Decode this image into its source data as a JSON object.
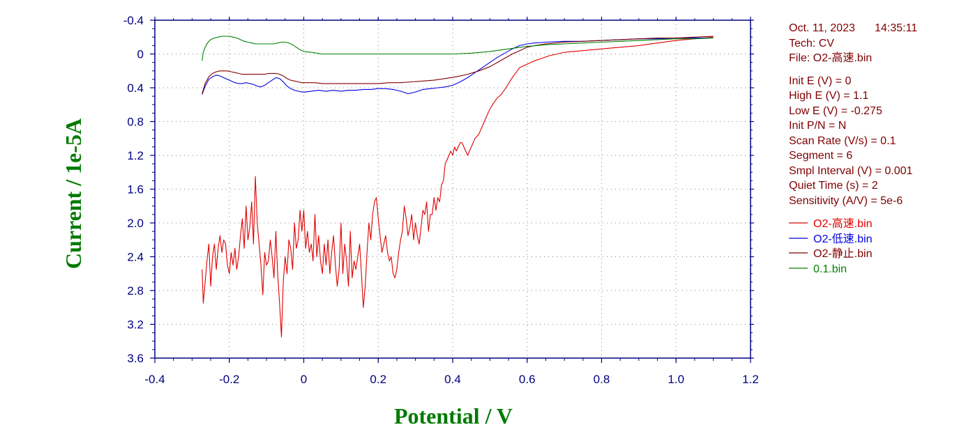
{
  "info": {
    "date": "Oct. 11, 2023",
    "time": "14:35:11",
    "tech": "Tech: CV",
    "file": "File: O2-高速.bin",
    "params": [
      "Init E (V) = 0",
      "High E (V) = 1.1",
      "Low E (V) = -0.275",
      "Init P/N = N",
      "Scan Rate (V/s) = 0.1",
      "Segment = 6",
      "Smpl Interval (V) = 0.001",
      "Quiet Time (s) = 2",
      "Sensitivity (A/V) = 5e-6"
    ]
  },
  "colors": {
    "axis": "#000080",
    "title": "#007a00",
    "info": "#800000"
  },
  "chart_data": {
    "type": "line",
    "xlabel": "Potential / V",
    "ylabel": "Current / 1e-5A",
    "xlim": [
      -0.4,
      1.2
    ],
    "ylim": [
      -0.4,
      3.6
    ],
    "y_inverted": true,
    "grid": "dotted",
    "x_ticks": [
      "-0.4",
      "-0.2",
      "0",
      "0.2",
      "0.4",
      "0.6",
      "0.8",
      "1.0",
      "1.2"
    ],
    "y_ticks": [
      "-0.4",
      "0",
      "0.4",
      "0.8",
      "1.2",
      "1.6",
      "2.0",
      "2.4",
      "2.8",
      "3.2",
      "3.6"
    ],
    "legend_position": "right",
    "series": [
      {
        "name": "O2-高速.bin",
        "color": "#e00000",
        "x": [
          -0.273,
          -0.27,
          -0.265,
          -0.26,
          -0.255,
          -0.25,
          -0.245,
          -0.24,
          -0.235,
          -0.23,
          -0.225,
          -0.22,
          -0.215,
          -0.21,
          -0.205,
          -0.2,
          -0.195,
          -0.19,
          -0.185,
          -0.18,
          -0.175,
          -0.17,
          -0.165,
          -0.16,
          -0.155,
          -0.15,
          -0.145,
          -0.14,
          -0.135,
          -0.13,
          -0.125,
          -0.12,
          -0.115,
          -0.11,
          -0.105,
          -0.1,
          -0.095,
          -0.09,
          -0.085,
          -0.08,
          -0.075,
          -0.07,
          -0.065,
          -0.06,
          -0.055,
          -0.05,
          -0.045,
          -0.04,
          -0.035,
          -0.03,
          -0.025,
          -0.02,
          -0.015,
          -0.01,
          -0.005,
          0.0,
          0.005,
          0.01,
          0.015,
          0.02,
          0.025,
          0.03,
          0.035,
          0.04,
          0.045,
          0.05,
          0.055,
          0.06,
          0.065,
          0.07,
          0.075,
          0.08,
          0.085,
          0.09,
          0.095,
          0.1,
          0.105,
          0.11,
          0.115,
          0.12,
          0.125,
          0.13,
          0.135,
          0.14,
          0.145,
          0.15,
          0.155,
          0.16,
          0.165,
          0.17,
          0.175,
          0.18,
          0.185,
          0.19,
          0.195,
          0.2,
          0.205,
          0.21,
          0.215,
          0.22,
          0.225,
          0.23,
          0.235,
          0.24,
          0.245,
          0.25,
          0.255,
          0.26,
          0.265,
          0.27,
          0.275,
          0.28,
          0.285,
          0.29,
          0.295,
          0.3,
          0.305,
          0.31,
          0.315,
          0.32,
          0.325,
          0.33,
          0.335,
          0.34,
          0.345,
          0.35,
          0.355,
          0.36,
          0.365,
          0.37,
          0.375,
          0.38,
          0.385,
          0.39,
          0.395,
          0.4,
          0.405,
          0.41,
          0.415,
          0.42,
          0.425,
          0.43,
          0.435,
          0.44,
          0.45,
          0.46,
          0.47,
          0.48,
          0.49,
          0.5,
          0.51,
          0.52,
          0.53,
          0.54,
          0.55,
          0.56,
          0.57,
          0.58,
          0.6,
          0.62,
          0.64,
          0.66,
          0.68,
          0.7,
          0.75,
          0.8,
          0.85,
          0.9,
          0.95,
          1.0,
          1.05,
          1.1
        ],
        "y": [
          2.55,
          2.95,
          2.7,
          2.45,
          2.25,
          2.75,
          2.4,
          2.25,
          2.55,
          2.3,
          2.15,
          2.35,
          2.2,
          2.25,
          2.5,
          2.6,
          2.35,
          2.5,
          2.3,
          2.55,
          2.4,
          2.15,
          1.95,
          2.3,
          1.8,
          2.2,
          2.05,
          1.75,
          2.25,
          1.45,
          2.0,
          2.25,
          2.5,
          2.85,
          2.35,
          2.5,
          2.45,
          2.2,
          2.4,
          2.65,
          2.1,
          2.6,
          2.95,
          3.35,
          2.7,
          2.4,
          2.6,
          2.2,
          2.3,
          2.55,
          2.0,
          2.3,
          2.2,
          1.85,
          2.1,
          1.85,
          2.3,
          2.1,
          2.35,
          2.25,
          2.45,
          1.9,
          2.4,
          2.15,
          2.45,
          2.6,
          2.25,
          2.5,
          2.2,
          2.6,
          2.35,
          2.15,
          2.5,
          2.75,
          2.55,
          2.0,
          2.6,
          2.25,
          2.45,
          2.75,
          2.1,
          2.65,
          2.45,
          2.55,
          2.4,
          2.25,
          2.6,
          3.0,
          2.75,
          2.35,
          2.0,
          2.2,
          1.9,
          1.75,
          1.7,
          1.95,
          2.15,
          2.35,
          2.25,
          2.15,
          2.35,
          2.45,
          2.4,
          2.6,
          2.65,
          2.55,
          2.35,
          2.2,
          2.1,
          1.8,
          1.95,
          2.15,
          2.05,
          1.9,
          2.2,
          2.0,
          2.15,
          2.25,
          2.05,
          1.85,
          1.9,
          1.75,
          2.1,
          1.9,
          1.9,
          1.7,
          1.85,
          1.7,
          1.75,
          1.55,
          1.5,
          1.3,
          1.25,
          1.2,
          1.15,
          1.2,
          1.1,
          1.15,
          1.1,
          1.05,
          1.05,
          1.1,
          1.15,
          1.2,
          1.1,
          1.0,
          0.95,
          0.85,
          0.75,
          0.65,
          0.58,
          0.52,
          0.48,
          0.42,
          0.35,
          0.28,
          0.22,
          0.16,
          0.12,
          0.08,
          0.05,
          0.02,
          0.0,
          -0.02,
          -0.04,
          -0.06,
          -0.08,
          -0.1,
          -0.13,
          -0.16,
          -0.18,
          -0.2
        ]
      },
      {
        "name": "O2-低速.bin",
        "color": "#0000e0",
        "x": [
          -0.273,
          -0.265,
          -0.255,
          -0.245,
          -0.235,
          -0.225,
          -0.215,
          -0.205,
          -0.195,
          -0.185,
          -0.175,
          -0.165,
          -0.155,
          -0.145,
          -0.135,
          -0.125,
          -0.115,
          -0.105,
          -0.095,
          -0.085,
          -0.075,
          -0.065,
          -0.055,
          -0.045,
          -0.035,
          -0.025,
          -0.015,
          -0.005,
          0.005,
          0.02,
          0.04,
          0.06,
          0.08,
          0.1,
          0.12,
          0.14,
          0.16,
          0.18,
          0.2,
          0.22,
          0.24,
          0.26,
          0.28,
          0.3,
          0.32,
          0.34,
          0.36,
          0.38,
          0.4,
          0.42,
          0.44,
          0.46,
          0.48,
          0.5,
          0.52,
          0.54,
          0.56,
          0.58,
          0.6,
          0.62,
          0.65,
          0.7,
          0.75,
          0.8,
          0.85,
          0.9,
          0.95,
          1.0,
          1.05,
          1.1
        ],
        "y": [
          0.48,
          0.38,
          0.3,
          0.27,
          0.25,
          0.26,
          0.28,
          0.3,
          0.32,
          0.34,
          0.35,
          0.35,
          0.34,
          0.35,
          0.36,
          0.38,
          0.39,
          0.37,
          0.34,
          0.31,
          0.28,
          0.29,
          0.33,
          0.38,
          0.41,
          0.43,
          0.44,
          0.45,
          0.45,
          0.44,
          0.43,
          0.44,
          0.43,
          0.44,
          0.43,
          0.43,
          0.42,
          0.42,
          0.41,
          0.41,
          0.42,
          0.44,
          0.47,
          0.45,
          0.42,
          0.41,
          0.4,
          0.39,
          0.37,
          0.33,
          0.28,
          0.22,
          0.16,
          0.1,
          0.04,
          -0.01,
          -0.06,
          -0.1,
          -0.12,
          -0.13,
          -0.14,
          -0.15,
          -0.15,
          -0.16,
          -0.17,
          -0.18,
          -0.18,
          -0.19,
          -0.19,
          -0.19
        ]
      },
      {
        "name": "O2-静止.bin",
        "color": "#800000",
        "x": [
          -0.273,
          -0.265,
          -0.255,
          -0.245,
          -0.235,
          -0.225,
          -0.215,
          -0.205,
          -0.195,
          -0.185,
          -0.175,
          -0.165,
          -0.155,
          -0.145,
          -0.135,
          -0.125,
          -0.115,
          -0.105,
          -0.095,
          -0.085,
          -0.075,
          -0.065,
          -0.055,
          -0.045,
          -0.035,
          -0.025,
          -0.015,
          -0.005,
          0.01,
          0.03,
          0.05,
          0.08,
          0.11,
          0.14,
          0.17,
          0.2,
          0.23,
          0.26,
          0.29,
          0.32,
          0.35,
          0.38,
          0.41,
          0.44,
          0.47,
          0.5,
          0.52,
          0.54,
          0.56,
          0.58,
          0.6,
          0.62,
          0.65,
          0.7,
          0.75,
          0.8,
          0.85,
          0.9,
          0.95,
          1.0,
          1.05,
          1.1
        ],
        "y": [
          0.47,
          0.35,
          0.27,
          0.23,
          0.21,
          0.2,
          0.2,
          0.2,
          0.21,
          0.22,
          0.23,
          0.24,
          0.24,
          0.24,
          0.24,
          0.24,
          0.24,
          0.24,
          0.23,
          0.23,
          0.23,
          0.24,
          0.26,
          0.29,
          0.31,
          0.32,
          0.33,
          0.34,
          0.34,
          0.34,
          0.35,
          0.35,
          0.35,
          0.35,
          0.35,
          0.35,
          0.34,
          0.34,
          0.33,
          0.32,
          0.31,
          0.29,
          0.27,
          0.24,
          0.2,
          0.15,
          0.1,
          0.05,
          0.0,
          -0.04,
          -0.08,
          -0.1,
          -0.12,
          -0.14,
          -0.15,
          -0.16,
          -0.17,
          -0.18,
          -0.19,
          -0.19,
          -0.2,
          -0.21
        ]
      },
      {
        "name": "0.1.bin",
        "color": "#008000",
        "x": [
          -0.273,
          -0.27,
          -0.265,
          -0.26,
          -0.255,
          -0.25,
          -0.24,
          -0.23,
          -0.22,
          -0.21,
          -0.2,
          -0.19,
          -0.18,
          -0.17,
          -0.16,
          -0.15,
          -0.14,
          -0.13,
          -0.12,
          -0.11,
          -0.1,
          -0.09,
          -0.08,
          -0.07,
          -0.06,
          -0.05,
          -0.04,
          -0.03,
          -0.02,
          -0.01,
          0.0,
          0.02,
          0.05,
          0.1,
          0.15,
          0.2,
          0.25,
          0.3,
          0.35,
          0.4,
          0.45,
          0.5,
          0.55,
          0.6,
          0.65,
          0.7,
          0.75,
          0.8,
          0.85,
          0.9,
          0.95,
          1.0,
          1.05,
          1.1
        ],
        "y": [
          0.08,
          -0.02,
          -0.08,
          -0.12,
          -0.15,
          -0.17,
          -0.19,
          -0.2,
          -0.21,
          -0.21,
          -0.21,
          -0.2,
          -0.19,
          -0.17,
          -0.15,
          -0.14,
          -0.13,
          -0.12,
          -0.12,
          -0.12,
          -0.12,
          -0.12,
          -0.12,
          -0.13,
          -0.14,
          -0.14,
          -0.13,
          -0.11,
          -0.08,
          -0.05,
          -0.03,
          -0.02,
          0.0,
          0.0,
          0.0,
          0.0,
          0.0,
          0.0,
          0.0,
          0.0,
          -0.01,
          -0.03,
          -0.06,
          -0.09,
          -0.11,
          -0.12,
          -0.13,
          -0.14,
          -0.15,
          -0.16,
          -0.17,
          -0.18,
          -0.18,
          -0.19
        ]
      }
    ]
  }
}
